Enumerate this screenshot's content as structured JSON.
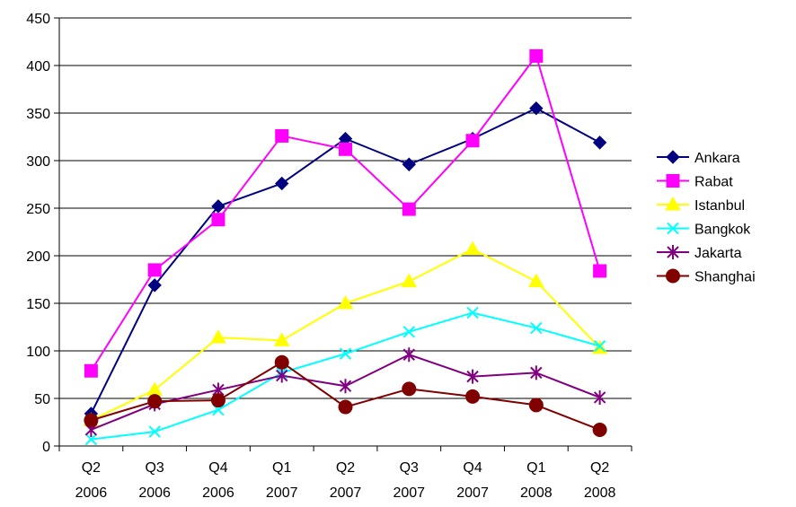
{
  "chart_data": {
    "type": "line",
    "title": "",
    "xlabel": "",
    "ylabel": "",
    "ylim": [
      0,
      450
    ],
    "yticks": [
      0,
      50,
      100,
      150,
      200,
      250,
      300,
      350,
      400,
      450
    ],
    "grid": "horizontal",
    "legend_position": "right",
    "categories": [
      [
        "Q2",
        "2006"
      ],
      [
        "Q3",
        "2006"
      ],
      [
        "Q4",
        "2006"
      ],
      [
        "Q1",
        "2007"
      ],
      [
        "Q2",
        "2007"
      ],
      [
        "Q3",
        "2007"
      ],
      [
        "Q4",
        "2007"
      ],
      [
        "Q1",
        "2008"
      ],
      [
        "Q2",
        "2008"
      ]
    ],
    "series": [
      {
        "name": "Ankara",
        "color": "#000080",
        "marker": "diamond",
        "values": [
          34,
          169,
          252,
          276,
          323,
          296,
          323,
          355,
          319
        ]
      },
      {
        "name": "Rabat",
        "color": "#FF00FF",
        "marker": "square",
        "values": [
          79,
          185,
          238,
          326,
          312,
          249,
          321,
          410,
          184
        ]
      },
      {
        "name": "Istanbul",
        "color": "#FFFF00",
        "marker": "triangle",
        "values": [
          27,
          59,
          114,
          111,
          150,
          173,
          207,
          173,
          103
        ]
      },
      {
        "name": "Bangkok",
        "color": "#00FFFF",
        "marker": "x",
        "values": [
          7,
          15,
          38,
          77,
          97,
          120,
          140,
          124,
          105
        ]
      },
      {
        "name": "Jakarta",
        "color": "#800080",
        "marker": "star",
        "values": [
          17,
          44,
          59,
          74,
          63,
          96,
          73,
          77,
          51
        ]
      },
      {
        "name": "Shanghai",
        "color": "#800000",
        "marker": "circle",
        "values": [
          27,
          47,
          48,
          88,
          41,
          60,
          52,
          43,
          17
        ]
      }
    ]
  }
}
